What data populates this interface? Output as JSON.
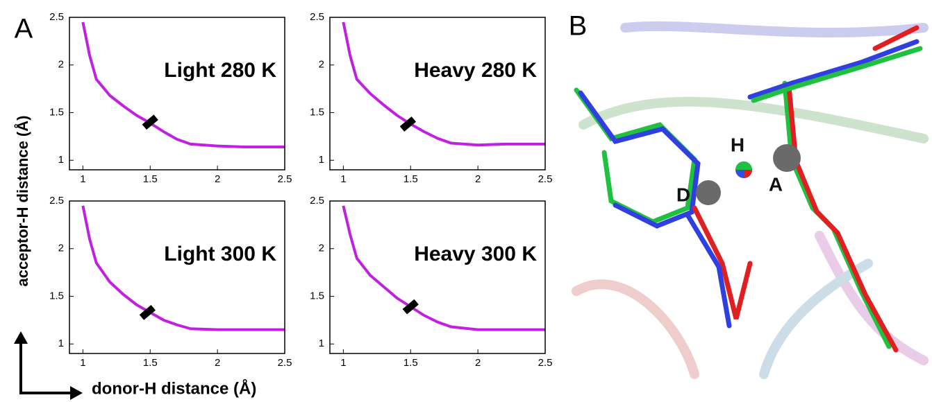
{
  "figure": {
    "panel_a_label": "A",
    "panel_b_label": "B",
    "y_axis_label": "acceptor-H distance (Å)",
    "x_axis_label": "donor-H distance (Å)",
    "atoms": [
      "D",
      "H",
      "A"
    ]
  },
  "chart_data": [
    {
      "type": "line",
      "title": "Light 280 K",
      "xlim": [
        0.9,
        2.5
      ],
      "ylim": [
        0.9,
        2.5
      ],
      "xticks": [
        1,
        1.5,
        2,
        2.5
      ],
      "yticks": [
        1,
        1.5,
        2,
        2.5
      ],
      "series": [
        {
          "color": "#c020e0",
          "x": [
            1.0,
            1.05,
            1.1,
            1.2,
            1.3,
            1.4,
            1.5,
            1.6,
            1.7,
            1.8,
            2.0,
            2.2,
            2.5
          ],
          "y": [
            2.45,
            2.1,
            1.85,
            1.68,
            1.57,
            1.47,
            1.39,
            1.3,
            1.22,
            1.17,
            1.15,
            1.14,
            1.14
          ]
        }
      ],
      "transition_point": {
        "x": 1.5,
        "y": 1.4
      }
    },
    {
      "type": "line",
      "title": "Heavy 280 K",
      "xlim": [
        0.9,
        2.5
      ],
      "ylim": [
        0.9,
        2.5
      ],
      "xticks": [
        1,
        1.5,
        2,
        2.5
      ],
      "yticks": [
        1,
        1.5,
        2,
        2.5
      ],
      "series": [
        {
          "color": "#c020e0",
          "x": [
            1.0,
            1.05,
            1.1,
            1.2,
            1.3,
            1.4,
            1.5,
            1.6,
            1.7,
            1.8,
            2.0,
            2.2,
            2.5
          ],
          "y": [
            2.45,
            2.1,
            1.85,
            1.7,
            1.58,
            1.47,
            1.38,
            1.3,
            1.23,
            1.18,
            1.16,
            1.17,
            1.17
          ]
        }
      ],
      "transition_point": {
        "x": 1.48,
        "y": 1.38
      }
    },
    {
      "type": "line",
      "title": "Light 300 K",
      "xlim": [
        0.9,
        2.5
      ],
      "ylim": [
        0.9,
        2.5
      ],
      "xticks": [
        1,
        1.5,
        2,
        2.5
      ],
      "yticks": [
        1,
        1.5,
        2,
        2.5
      ],
      "series": [
        {
          "color": "#c020e0",
          "x": [
            1.0,
            1.05,
            1.1,
            1.2,
            1.3,
            1.4,
            1.5,
            1.6,
            1.7,
            1.8,
            2.0,
            2.2,
            2.5
          ],
          "y": [
            2.45,
            2.1,
            1.85,
            1.65,
            1.52,
            1.41,
            1.33,
            1.25,
            1.2,
            1.16,
            1.15,
            1.15,
            1.15
          ]
        }
      ],
      "transition_point": {
        "x": 1.48,
        "y": 1.33
      }
    },
    {
      "type": "line",
      "title": "Heavy 300 K",
      "xlim": [
        0.9,
        2.5
      ],
      "ylim": [
        0.9,
        2.5
      ],
      "xticks": [
        1,
        1.5,
        2,
        2.5
      ],
      "yticks": [
        1,
        1.5,
        2,
        2.5
      ],
      "series": [
        {
          "color": "#c020e0",
          "x": [
            1.0,
            1.05,
            1.1,
            1.2,
            1.3,
            1.4,
            1.5,
            1.6,
            1.7,
            1.8,
            2.0,
            2.2,
            2.5
          ],
          "y": [
            2.45,
            2.15,
            1.9,
            1.72,
            1.6,
            1.48,
            1.39,
            1.3,
            1.23,
            1.18,
            1.15,
            1.15,
            1.15
          ]
        }
      ],
      "transition_point": {
        "x": 1.5,
        "y": 1.39
      }
    }
  ]
}
